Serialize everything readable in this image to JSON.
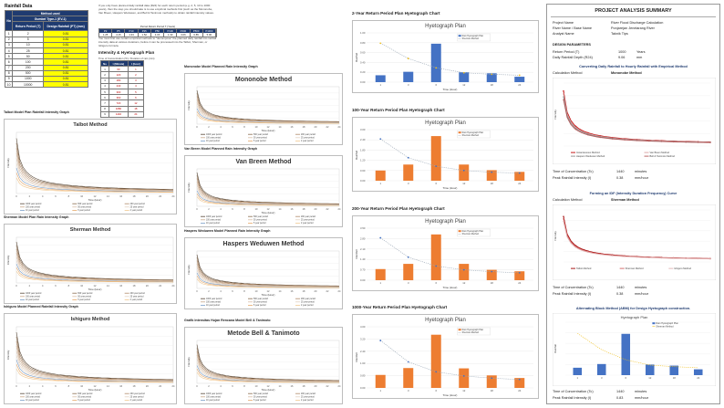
{
  "rainfall": {
    "title": "Rainfall Data",
    "table_head": {
      "no": "No",
      "method_used": "Method used",
      "gumbel": "Gumbel Type-1 (EV-1)",
      "rp": "Return Period (T)",
      "design": "Design Rainfall (PT) (mm)"
    },
    "rows": [
      {
        "no": "1",
        "t": "2",
        "p": "0.81"
      },
      {
        "no": "2",
        "t": "5",
        "p": "0.81"
      },
      {
        "no": "3",
        "t": "10",
        "p": "0.81"
      },
      {
        "no": "4",
        "t": "25",
        "p": "0.81"
      },
      {
        "no": "5",
        "t": "50",
        "p": "0.81"
      },
      {
        "no": "6",
        "t": "100",
        "p": "0.81"
      },
      {
        "no": "7",
        "t": "200",
        "p": "0.81"
      },
      {
        "no": "8",
        "t": "500",
        "p": "0.81"
      },
      {
        "no": "9",
        "t": "1000",
        "p": "0.81"
      },
      {
        "no": "10",
        "t": "10000",
        "p": "0.81"
      }
    ]
  },
  "intro": {
    "p1": "If you only have planned daily rainfall data (R24) for each return period (e.g. 2, 5, 10 to 1000 years), then the step you should take is to use empirical methods first (such as the Mononobe, Van Breen, Haspers Weduwen, and Bell & Tanimoto methods) to obtain rainfall intensity values.",
    "p2": "You must first use certain empirical methods to \"decompose\" the planned daily rainfall into rainfall intensity data at various durations, before it can be processed into the Talbot, Sherman, or Ishiguro formula.",
    "period_title": "Period Return Period T (Years)",
    "period_head": [
      "P2",
      "P5",
      "P10",
      "P25",
      "P50",
      "P100",
      "P200",
      "P500",
      "P1000"
    ],
    "period_vals": [
      "1.25",
      "4.15",
      "1.33",
      "1.52",
      "4.15",
      "1.33",
      "3.06",
      "0.85",
      "5.00"
    ]
  },
  "ih": {
    "title": "Intensity & Hyetograph Plan",
    "sub": "Time of Concentration (Tc) / Duration of rain (min)",
    "head": [
      "No",
      "t (Minute)",
      "t (hour)"
    ],
    "rows": [
      [
        "1",
        "60",
        "1"
      ],
      [
        "2",
        "120",
        "2"
      ],
      [
        "3",
        "180",
        "3"
      ],
      [
        "4",
        "240",
        "4"
      ],
      [
        "5",
        "300",
        "5"
      ],
      [
        "6",
        "360",
        "6"
      ],
      [
        "7",
        "720",
        "12"
      ],
      [
        "8",
        "1080",
        "18"
      ],
      [
        "9",
        "1440",
        "24"
      ]
    ]
  },
  "left_charts": [
    {
      "section": "Talbot Model Plan Rainfall Intensity Graph",
      "title": "Talbot Method"
    },
    {
      "section": "Sherman Model Plan Rain Intensity Graph",
      "title": "Sherman Method"
    },
    {
      "section": "Ishiguro Model Planned Rainfall Intensity Graph",
      "title": "Ishiguro Method"
    }
  ],
  "mid_charts": [
    {
      "section": "Mononobe Model Planned Rain Intensity Graph",
      "title": "Mononobe Method"
    },
    {
      "section": "Van Breen Model Planned Rain Intensity Graph",
      "title": "Van Breen Method"
    },
    {
      "section": "Haspers Weduwen Model Planned Rain Intensity Graph",
      "title": "Haspers Weduwen Method"
    },
    {
      "section": "Grafik Intensitas Hujan Rencana Model Bell & Tanimoto",
      "title": "Metode Bell & Tanimoto"
    }
  ],
  "chart_common": {
    "ylabel": "Intensity",
    "xlabel": "Time (Hour)",
    "xticks": [
      "0",
      "2",
      "4",
      "6",
      "8",
      "10",
      "12",
      "14",
      "16",
      "18",
      "20",
      "22",
      "24"
    ],
    "legend": [
      "1000 year period",
      "500 year period",
      "200 year period",
      "100 year period",
      "50 year period",
      "25 year period",
      "10 year period",
      "5 year period",
      "2 year period"
    ]
  },
  "hyeto_charts": [
    {
      "section": "2-Year Return Period Plan Hyetograph Chart",
      "title": "Hyetograph Plan",
      "bar_color": "#4472c4",
      "ymax": 1.0
    },
    {
      "section": "100-Year Return Period Plan Hyetograph Chart",
      "title": "Hyetograph Plan",
      "bar_color": "#ed7d31",
      "ymax": 3.0
    },
    {
      "section": "200-Year Return Period Plan Hyetograph Chart",
      "title": "Hyetograph Plan",
      "bar_color": "#ed7d31",
      "ymax": 3.5
    },
    {
      "section": "1000-Year Return Period Plan Hyetograph Chart",
      "title": "Hyetograph Plan",
      "bar_color": "#ed7d31",
      "ymax": 4.0
    }
  ],
  "hyeto_common": {
    "ylabel": "Rainfall",
    "xlabel": "Time (Hour)",
    "categories": [
      "1",
      "3",
      "6",
      "12",
      "18",
      "24"
    ],
    "legend_bar": "Rain Hyetograph Plan",
    "legend_line": "Sherman Method"
  },
  "chart_data": [
    {
      "type": "bar",
      "title": "Hyetograph Plan",
      "categories": [
        "1",
        "3",
        "6",
        "12",
        "18",
        "24"
      ],
      "series": [
        {
          "name": "Rain Hyetograph Plan",
          "values": [
            0.14,
            0.21,
            0.78,
            0.2,
            0.18,
            0.11
          ]
        },
        {
          "name": "Sherman Method",
          "values": [
            0.79,
            0.48,
            0.29,
            0.19,
            0.16,
            0.14
          ]
        }
      ],
      "ylim": [
        0,
        1.0
      ]
    },
    {
      "type": "bar",
      "title": "Hyetograph Plan",
      "categories": [
        "1",
        "3",
        "6",
        "12",
        "18",
        "24"
      ],
      "series": [
        {
          "name": "Rain Hyetograph Plan",
          "values": [
            0.6,
            0.95,
            2.62,
            0.95,
            0.62,
            0.52
          ]
        },
        {
          "name": "Sherman Method",
          "values": [
            2.45,
            1.35,
            0.85,
            0.6,
            0.5,
            0.45
          ]
        }
      ],
      "ylim": [
        0,
        3.0
      ]
    },
    {
      "type": "bar",
      "title": "Hyetograph Plan",
      "categories": [
        "1",
        "3",
        "6",
        "12",
        "18",
        "24"
      ],
      "series": [
        {
          "name": "Rain Hyetograph Plan",
          "values": [
            0.75,
            1.1,
            3.08,
            1.1,
            0.7,
            0.6
          ]
        },
        {
          "name": "Sherman Method",
          "values": [
            2.85,
            1.55,
            0.95,
            0.7,
            0.58,
            0.5
          ]
        }
      ],
      "ylim": [
        0,
        3.5
      ]
    },
    {
      "type": "bar",
      "title": "Hyetograph Plan",
      "categories": [
        "1",
        "3",
        "6",
        "12",
        "18",
        "24"
      ],
      "series": [
        {
          "name": "Rain Hyetograph Plan",
          "values": [
            0.85,
            1.3,
            3.48,
            1.28,
            0.82,
            0.65
          ]
        },
        {
          "name": "Sherman Method",
          "values": [
            3.1,
            1.7,
            1.05,
            0.78,
            0.64,
            0.55
          ]
        }
      ],
      "ylim": [
        0,
        4.0
      ]
    }
  ],
  "summary": {
    "title": "PROJECT ANALYSIS SUMMARY",
    "rows": [
      {
        "k": "Project Name",
        "v": "River Flood Discharge Calculation"
      },
      {
        "k": "River Name  /  Base Name",
        "v": "Ponjarejan Jenelarang River"
      },
      {
        "k": "Analyst Name",
        "v": "Taknik Tips"
      }
    ],
    "dp_title": "DESIGN PARAMETERS",
    "dp": [
      {
        "k": "Return Period (T)",
        "v": "1000",
        "u": "Years"
      },
      {
        "k": "Daily Rainfall Depth (R24)",
        "v": "9.06",
        "u": "mm"
      }
    ],
    "conv_title": "Converting Daily Rainfall to Hourly Rainfall with Empirical Method",
    "calc_label": "Calculation Method",
    "calc1": "Mononobe Method",
    "chart1_legend": [
      "Instantaneous Method",
      "Van Breen Method",
      "Haspers Weduwen Method",
      "Bell & Tanimoto Method"
    ],
    "toc1": {
      "k": "Time of Concentration (Tc)",
      "v": "1440",
      "u": "minutes"
    },
    "pri1": {
      "k": "Peak Rainfall Intensity (I)",
      "v": "0.38",
      "u": "mm/hour"
    },
    "idf_title": "Forming an IDF (Intensity Duration Frequency) Curve",
    "calc2": "Sherman Method",
    "chart2_legend": [
      "Talbot Method",
      "Sherman Method",
      "Ishiguro Method"
    ],
    "toc2": {
      "k": "Time of Concentration (Tc)",
      "v": "1440",
      "u": "minutes"
    },
    "pri2": {
      "k": "Peak Rainfall Intensity (I)",
      "v": "0.38",
      "u": "mm/hour"
    },
    "abm_title": "Alternating Block Method (ABM) for Design Hyetograph construction.",
    "chart3_title": "Hyetograph Plan",
    "chart3_legend": [
      "Rain Hyetograph Plan",
      "Sherman Method"
    ],
    "toc3": {
      "k": "Time of Concentration (Tc)",
      "v": "1440",
      "u": "minutes"
    },
    "pri3": {
      "k": "Peak Rainfall Intensity (I)",
      "v": "0.83",
      "u": "mm/hour"
    }
  }
}
